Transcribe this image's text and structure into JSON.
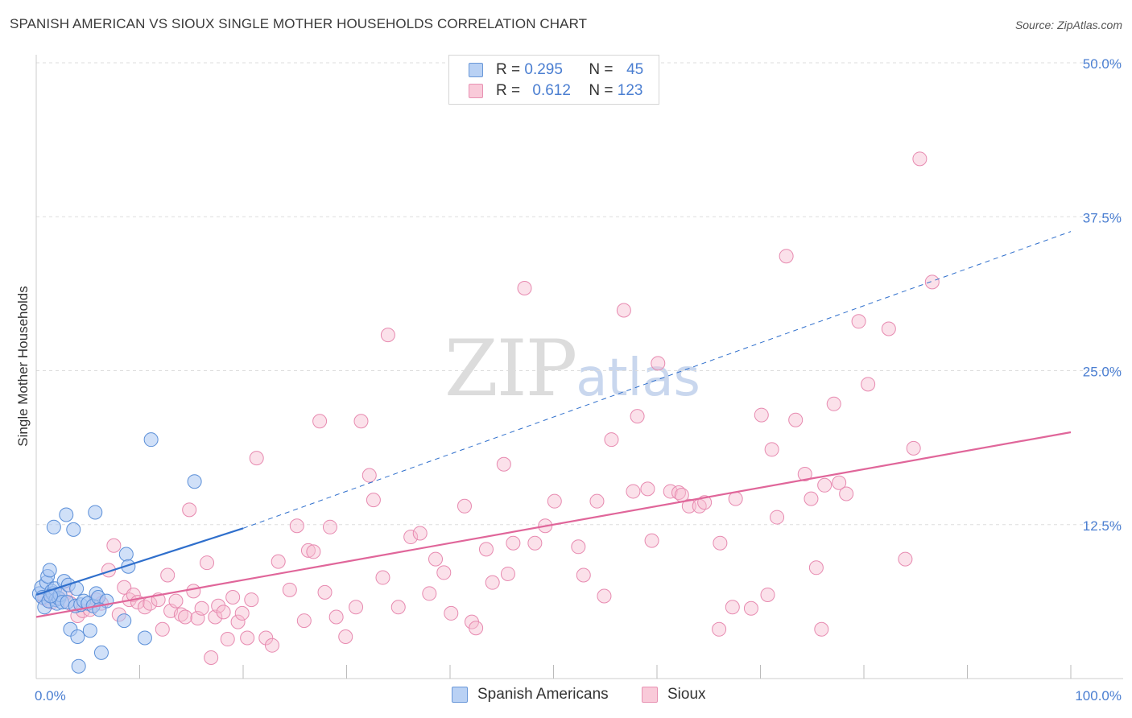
{
  "title": "SPANISH AMERICAN VS SIOUX SINGLE MOTHER HOUSEHOLDS CORRELATION CHART",
  "source": "Source: ZipAtlas.com",
  "watermark": {
    "zip": "ZIP",
    "atlas": "atlas"
  },
  "colors": {
    "blue_fill": "#a9c7f2",
    "blue_stroke": "#5b8fd8",
    "blue_line": "#2f6fcc",
    "pink_fill": "#f6bcd0",
    "pink_stroke": "#e78ab0",
    "pink_line": "#e0669a",
    "grid": "#dddddd",
    "axis_text": "#4a7ed1"
  },
  "legend": {
    "rows": [
      {
        "r_label": "R =",
        "r_value": "0.295",
        "n_label": "N =",
        "n_value": "45",
        "series": "blue"
      },
      {
        "r_label": "R =",
        "r_value": "0.612",
        "n_label": "N =",
        "n_value": "123",
        "series": "pink"
      }
    ]
  },
  "bottom_legend": [
    {
      "label": "Spanish Americans",
      "series": "blue"
    },
    {
      "label": "Sioux",
      "series": "pink"
    }
  ],
  "chart_data": {
    "type": "scatter",
    "title": "SPANISH AMERICAN VS SIOUX SINGLE MOTHER HOUSEHOLDS CORRELATION CHART",
    "xlabel": "",
    "ylabel": "Single Mother Households",
    "xlim": [
      0,
      100
    ],
    "ylim": [
      0,
      50
    ],
    "x_tick_labels": [
      {
        "value": 0,
        "label": "0.0%"
      },
      {
        "value": 100,
        "label": "100.0%"
      }
    ],
    "y_tick_labels": [
      {
        "value": 12.5,
        "label": "12.5%"
      },
      {
        "value": 25.0,
        "label": "25.0%"
      },
      {
        "value": 37.5,
        "label": "37.5%"
      },
      {
        "value": 50.0,
        "label": "50.0%"
      }
    ],
    "grid": true,
    "series": [
      {
        "name": "Spanish Americans",
        "color": "blue",
        "points": [
          [
            0.3,
            6.9
          ],
          [
            0.5,
            7.4
          ],
          [
            0.6,
            6.6
          ],
          [
            0.8,
            5.8
          ],
          [
            1.0,
            7.8
          ],
          [
            1.1,
            8.3
          ],
          [
            1.2,
            6.3
          ],
          [
            1.3,
            8.8
          ],
          [
            1.5,
            7.1
          ],
          [
            1.6,
            6.9
          ],
          [
            1.7,
            12.3
          ],
          [
            1.8,
            7.3
          ],
          [
            1.9,
            6.4
          ],
          [
            2.0,
            6.1
          ],
          [
            2.2,
            6.5
          ],
          [
            2.3,
            6.8
          ],
          [
            2.5,
            6.2
          ],
          [
            2.7,
            7.9
          ],
          [
            2.9,
            13.3
          ],
          [
            3.0,
            6.2
          ],
          [
            3.1,
            7.6
          ],
          [
            3.3,
            4.0
          ],
          [
            3.6,
            12.1
          ],
          [
            3.8,
            5.9
          ],
          [
            3.9,
            7.3
          ],
          [
            4.0,
            3.4
          ],
          [
            4.1,
            1.0
          ],
          [
            4.3,
            6.0
          ],
          [
            4.6,
            6.3
          ],
          [
            5.0,
            6.1
          ],
          [
            5.2,
            3.9
          ],
          [
            5.5,
            5.9
          ],
          [
            5.7,
            13.5
          ],
          [
            5.8,
            6.9
          ],
          [
            6.0,
            6.6
          ],
          [
            6.3,
            2.1
          ],
          [
            6.8,
            6.3
          ],
          [
            8.5,
            4.7
          ],
          [
            8.7,
            10.1
          ],
          [
            8.9,
            9.1
          ],
          [
            10.5,
            3.3
          ],
          [
            11.1,
            19.4
          ],
          [
            15.3,
            16.0
          ],
          [
            6.1,
            5.6
          ],
          [
            1.4,
            6.7
          ]
        ]
      },
      {
        "name": "Sioux",
        "color": "pink",
        "points": [
          [
            0.8,
            6.5
          ],
          [
            1.5,
            6.2
          ],
          [
            2.0,
            6.6
          ],
          [
            2.8,
            6.9
          ],
          [
            3.3,
            6.1
          ],
          [
            4.0,
            5.1
          ],
          [
            4.5,
            5.5
          ],
          [
            5.2,
            5.6
          ],
          [
            5.8,
            6.4
          ],
          [
            6.3,
            6.1
          ],
          [
            7.0,
            8.8
          ],
          [
            7.5,
            10.8
          ],
          [
            8.0,
            5.2
          ],
          [
            8.5,
            7.4
          ],
          [
            9.0,
            6.4
          ],
          [
            9.4,
            6.8
          ],
          [
            9.8,
            6.2
          ],
          [
            10.5,
            5.8
          ],
          [
            11.0,
            6.1
          ],
          [
            11.8,
            6.4
          ],
          [
            12.2,
            4.0
          ],
          [
            12.7,
            8.4
          ],
          [
            13.0,
            5.5
          ],
          [
            13.5,
            6.3
          ],
          [
            14.0,
            5.2
          ],
          [
            14.4,
            5.0
          ],
          [
            14.8,
            13.7
          ],
          [
            15.2,
            7.1
          ],
          [
            15.6,
            4.9
          ],
          [
            16.0,
            5.7
          ],
          [
            16.5,
            9.4
          ],
          [
            16.9,
            1.7
          ],
          [
            17.3,
            5.0
          ],
          [
            17.6,
            5.9
          ],
          [
            18.1,
            5.4
          ],
          [
            18.5,
            3.2
          ],
          [
            19.0,
            6.6
          ],
          [
            19.5,
            4.6
          ],
          [
            19.9,
            5.3
          ],
          [
            20.4,
            3.3
          ],
          [
            20.8,
            6.4
          ],
          [
            21.3,
            17.9
          ],
          [
            22.2,
            3.3
          ],
          [
            22.8,
            2.7
          ],
          [
            23.4,
            9.5
          ],
          [
            24.5,
            7.2
          ],
          [
            25.2,
            12.4
          ],
          [
            25.9,
            4.7
          ],
          [
            26.3,
            10.4
          ],
          [
            26.8,
            10.3
          ],
          [
            27.4,
            20.9
          ],
          [
            27.9,
            7.0
          ],
          [
            28.4,
            12.3
          ],
          [
            29.0,
            5.0
          ],
          [
            29.9,
            3.4
          ],
          [
            30.9,
            5.8
          ],
          [
            31.4,
            20.9
          ],
          [
            32.2,
            16.5
          ],
          [
            32.6,
            14.5
          ],
          [
            33.5,
            8.2
          ],
          [
            34.0,
            27.9
          ],
          [
            35.0,
            5.8
          ],
          [
            36.2,
            11.5
          ],
          [
            37.1,
            11.8
          ],
          [
            38.0,
            6.9
          ],
          [
            38.6,
            9.7
          ],
          [
            39.4,
            8.6
          ],
          [
            40.1,
            5.3
          ],
          [
            41.4,
            14.0
          ],
          [
            42.1,
            4.6
          ],
          [
            42.5,
            4.1
          ],
          [
            43.5,
            10.5
          ],
          [
            44.1,
            7.8
          ],
          [
            45.2,
            17.4
          ],
          [
            45.6,
            8.5
          ],
          [
            46.1,
            11.0
          ],
          [
            47.2,
            31.7
          ],
          [
            48.2,
            11.0
          ],
          [
            49.2,
            12.4
          ],
          [
            50.1,
            14.4
          ],
          [
            52.4,
            10.7
          ],
          [
            52.9,
            8.4
          ],
          [
            54.2,
            14.4
          ],
          [
            54.9,
            6.7
          ],
          [
            55.6,
            19.4
          ],
          [
            56.8,
            29.9
          ],
          [
            57.7,
            15.2
          ],
          [
            58.1,
            21.3
          ],
          [
            59.1,
            15.4
          ],
          [
            59.5,
            11.2
          ],
          [
            60.1,
            25.6
          ],
          [
            61.3,
            15.2
          ],
          [
            62.1,
            15.1
          ],
          [
            62.4,
            14.9
          ],
          [
            63.1,
            14.0
          ],
          [
            64.1,
            14.0
          ],
          [
            64.6,
            14.3
          ],
          [
            66.0,
            4.0
          ],
          [
            66.1,
            11.0
          ],
          [
            67.6,
            14.6
          ],
          [
            69.1,
            5.7
          ],
          [
            70.1,
            21.4
          ],
          [
            70.7,
            6.8
          ],
          [
            71.1,
            18.6
          ],
          [
            71.6,
            13.1
          ],
          [
            72.5,
            34.3
          ],
          [
            73.4,
            21.0
          ],
          [
            74.3,
            16.6
          ],
          [
            74.9,
            14.6
          ],
          [
            75.4,
            9.0
          ],
          [
            75.9,
            4.0
          ],
          [
            76.2,
            15.7
          ],
          [
            77.1,
            22.3
          ],
          [
            77.6,
            15.9
          ],
          [
            78.3,
            15.0
          ],
          [
            79.5,
            29.0
          ],
          [
            80.4,
            23.9
          ],
          [
            82.4,
            28.4
          ],
          [
            84.0,
            9.7
          ],
          [
            84.8,
            18.7
          ],
          [
            85.4,
            42.2
          ],
          [
            86.6,
            32.2
          ],
          [
            67.3,
            5.8
          ]
        ]
      }
    ],
    "trend_lines": [
      {
        "series": "Spanish Americans",
        "x_start": 0,
        "y_start": 6.8,
        "x_end": 20,
        "y_end": 12.2,
        "style": "solid"
      },
      {
        "series": "Spanish Americans",
        "x_start": 20,
        "y_start": 12.2,
        "x_end": 100,
        "y_end": 36.3,
        "style": "dashed"
      },
      {
        "series": "Sioux",
        "x_start": 0,
        "y_start": 5.0,
        "x_end": 100,
        "y_end": 20.0,
        "style": "solid"
      }
    ]
  }
}
